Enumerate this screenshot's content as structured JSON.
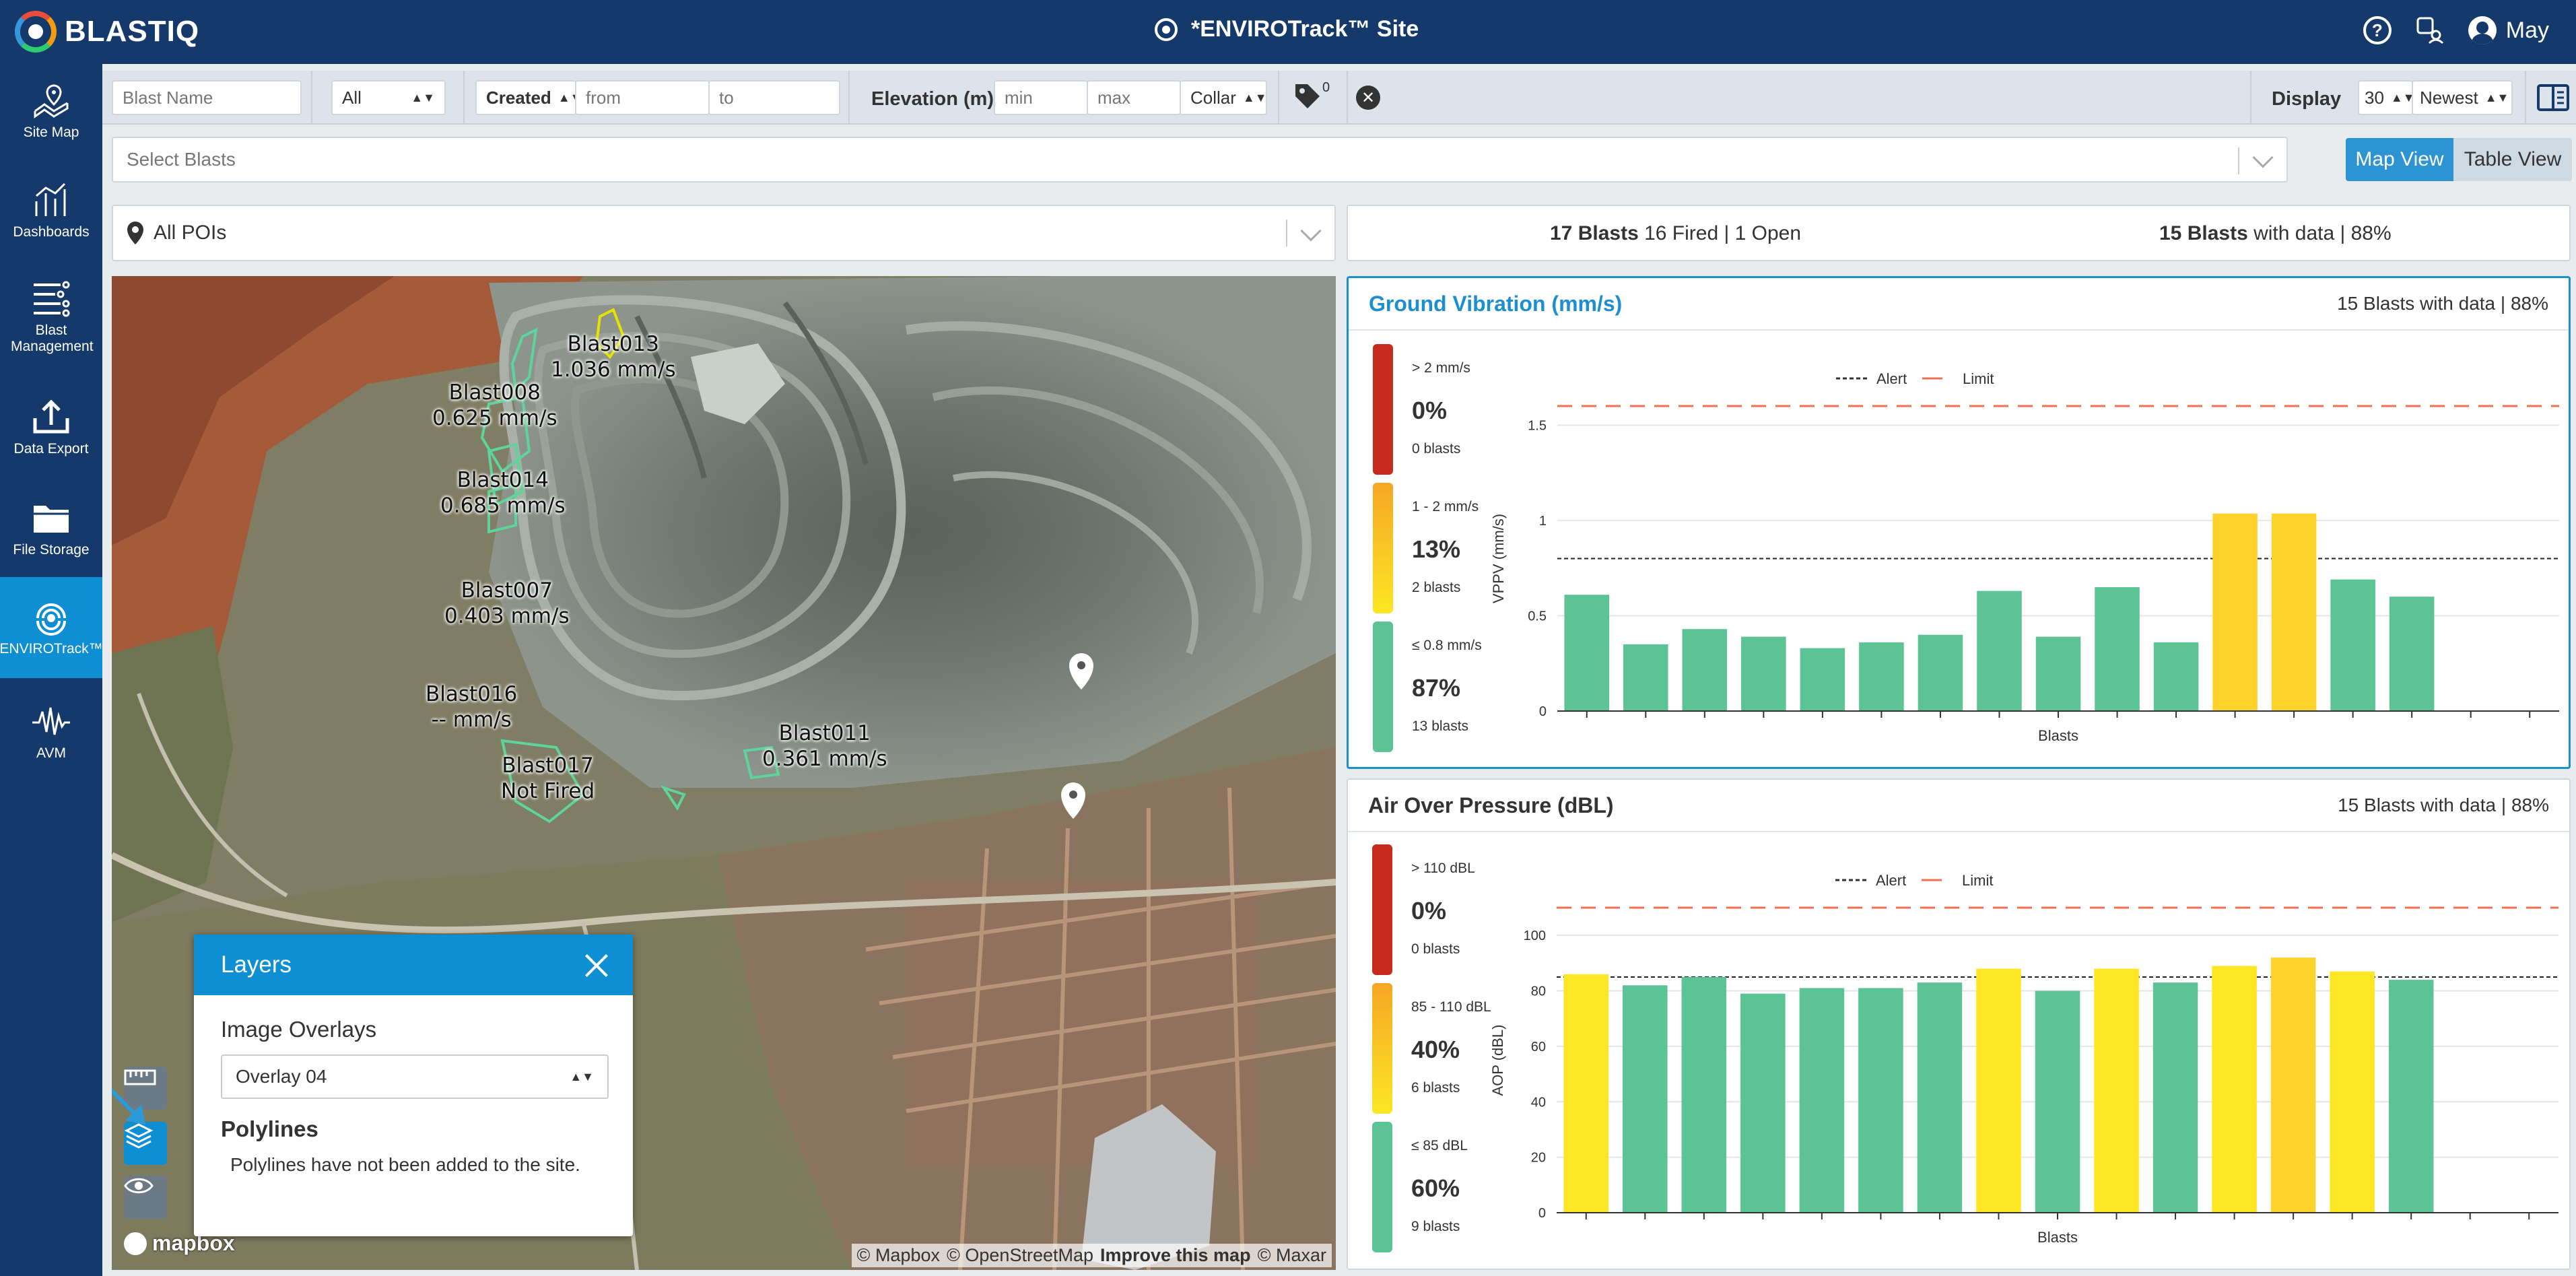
{
  "app": {
    "logo_text": "BLASTIQ",
    "site_title": "*ENVIROTrack™ Site",
    "user_name": "May"
  },
  "sidebar": {
    "items": [
      {
        "label": "Site Map",
        "icon": "map-icon"
      },
      {
        "label": "Dashboards",
        "icon": "dashboard-icon"
      },
      {
        "label": "Blast Management",
        "icon": "list-icon"
      },
      {
        "label": "Data Export",
        "icon": "upload-icon"
      },
      {
        "label": "File Storage",
        "icon": "folder-icon"
      },
      {
        "label": "ENVIROTrack™",
        "icon": "envirotrack-icon",
        "active": true
      },
      {
        "label": "AVM",
        "icon": "waveform-icon"
      }
    ]
  },
  "filters": {
    "blast_name_placeholder": "Blast Name",
    "status_value": "All",
    "date_type_value": "Created",
    "from_placeholder": "from",
    "to_placeholder": "to",
    "elevation_label": "Elevation (m)",
    "min_placeholder": "min",
    "max_placeholder": "max",
    "collar_value": "Collar",
    "tag_count": "0",
    "display_label": "Display",
    "display_count": "30",
    "sort_value": "Newest"
  },
  "select_blasts": {
    "placeholder": "Select Blasts"
  },
  "view_toggle": {
    "map_label": "Map View",
    "table_label": "Table View",
    "active": "map"
  },
  "poi": {
    "value": "All POIs"
  },
  "summary": {
    "blasts_bold": "17 Blasts",
    "blasts_rest": " 16 Fired | 1 Open",
    "data_bold": "15 Blasts",
    "data_rest": " with data | 88%"
  },
  "map": {
    "labels": [
      {
        "name": "Blast013",
        "value": "1.036 mm/s"
      },
      {
        "name": "Blast008",
        "value": "0.625 mm/s"
      },
      {
        "name": "Blast014",
        "value": "0.685 mm/s"
      },
      {
        "name": "Blast007",
        "value": "0.403 mm/s"
      },
      {
        "name": "Blast016",
        "value": "-- mm/s"
      },
      {
        "name": "Blast011",
        "value": "0.361 mm/s"
      },
      {
        "name": "Blast017",
        "value": "Not Fired"
      }
    ],
    "mapbox_label": "mapbox",
    "attribution": {
      "a": "© Mapbox",
      "b": "© OpenStreetMap",
      "c": "Improve this map",
      "d": "© Maxar"
    }
  },
  "layers_panel": {
    "title": "Layers",
    "image_overlays_label": "Image Overlays",
    "overlay_value": "Overlay 04",
    "polylines_label": "Polylines",
    "polylines_text": "Polylines have not been added to the site."
  },
  "ground_vibration": {
    "title": "Ground Vibration (mm/s)",
    "summary": "15 Blasts with data | 88%",
    "legend_alert": "Alert",
    "legend_limit": "Limit",
    "ranges": [
      {
        "label": "> 2 mm/s",
        "pct": "0%",
        "count": "0 blasts",
        "color": "#c62c1b"
      },
      {
        "label": "1 - 2 mm/s",
        "pct": "13%",
        "count": "2 blasts",
        "color": "#f5c518"
      },
      {
        "label": "≤ 0.8 mm/s",
        "pct": "87%",
        "count": "13 blasts",
        "color": "#5cc394"
      }
    ]
  },
  "air_over_pressure": {
    "title": "Air Over Pressure (dBL)",
    "summary": "15 Blasts with data | 88%",
    "legend_alert": "Alert",
    "legend_limit": "Limit",
    "ranges": [
      {
        "label": "> 110 dBL",
        "pct": "0%",
        "count": "0 blasts",
        "color": "#c62c1b"
      },
      {
        "label": "85 - 110 dBL",
        "pct": "40%",
        "count": "6 blasts",
        "color": "#f5c518"
      },
      {
        "label": "≤ 85 dBL",
        "pct": "60%",
        "count": "9 blasts",
        "color": "#5cc394"
      }
    ]
  },
  "chart_data": [
    {
      "type": "bar",
      "title": "Ground Vibration (mm/s)",
      "xlabel": "Blasts",
      "ylabel": "VPPV (mm/s)",
      "ylim": [
        0,
        1.6
      ],
      "yticks": [
        0,
        0.5,
        1,
        1.5
      ],
      "alert": 0.8,
      "limit": 1.6,
      "values": [
        0.61,
        0.35,
        0.43,
        0.39,
        0.33,
        0.36,
        0.4,
        0.63,
        0.39,
        0.65,
        0.36,
        1.036,
        1.036,
        0.69,
        0.6
      ],
      "colors": [
        "#5cc394",
        "#5cc394",
        "#5cc394",
        "#5cc394",
        "#5cc394",
        "#5cc394",
        "#5cc394",
        "#5cc394",
        "#5cc394",
        "#5cc394",
        "#5cc394",
        "#fdd22a",
        "#fdd22a",
        "#5cc394",
        "#5cc394"
      ],
      "slots": 17,
      "grid": true,
      "legend": "top-right"
    },
    {
      "type": "bar",
      "title": "Air Over Pressure (dBL)",
      "xlabel": "Blasts",
      "ylabel": "AOP (dBL)",
      "ylim": [
        0,
        110
      ],
      "yticks": [
        0,
        20,
        40,
        60,
        80,
        100
      ],
      "alert": 85,
      "limit": 110,
      "values": [
        86,
        82,
        85,
        79,
        81,
        81,
        83,
        88,
        80,
        88,
        83,
        89,
        92,
        87,
        84
      ],
      "colors": [
        "#fde724",
        "#5cc394",
        "#5cc394",
        "#5cc394",
        "#5cc394",
        "#5cc394",
        "#5cc394",
        "#fde724",
        "#5cc394",
        "#fde724",
        "#5cc394",
        "#fde724",
        "#fdd22a",
        "#fde724",
        "#5cc394"
      ],
      "slots": 17,
      "grid": true,
      "legend": "top-right"
    }
  ]
}
